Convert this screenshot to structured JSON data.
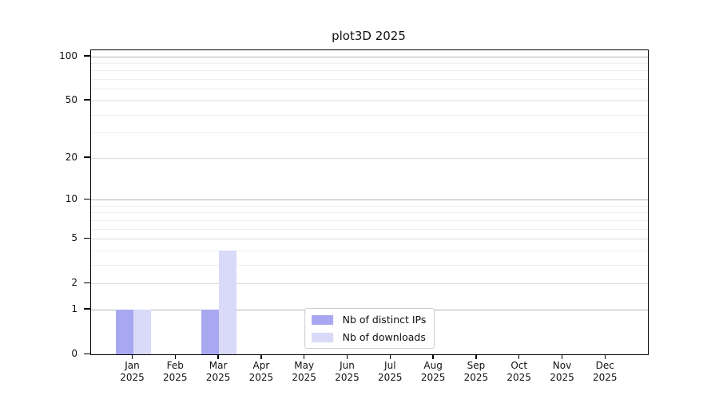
{
  "chart_data": {
    "type": "bar",
    "title": "plot3D 2025",
    "categories": [
      "Jan 2025",
      "Feb 2025",
      "Mar 2025",
      "Apr 2025",
      "May 2025",
      "Jun 2025",
      "Jul 2025",
      "Aug 2025",
      "Sep 2025",
      "Oct 2025",
      "Nov 2025",
      "Dec 2025"
    ],
    "series": [
      {
        "name": "Nb of distinct IPs",
        "color": "#a8a8f0",
        "values": [
          1,
          0,
          1,
          0,
          0,
          0,
          0,
          0,
          0,
          0,
          0,
          0
        ]
      },
      {
        "name": "Nb of downloads",
        "color": "#d9d9f8",
        "values": [
          1,
          0,
          4,
          0,
          0,
          0,
          0,
          0,
          0,
          0,
          0,
          0
        ]
      }
    ],
    "y_axis": {
      "scale": "log1p",
      "ticks": [
        0,
        1,
        2,
        5,
        10,
        20,
        50,
        100
      ],
      "minor_ticks": [
        3,
        4,
        6,
        7,
        8,
        9,
        30,
        40,
        60,
        70,
        80,
        90
      ],
      "max": 110
    },
    "xlabel": "",
    "ylabel": "",
    "grid": true,
    "legend_position": "lower center"
  },
  "colors": {
    "background": "#ffffff",
    "axis": "#000000",
    "grid_major_pow10": "#b5b5b5",
    "grid_major": "#dcdcdc",
    "grid_minor": "#efefef",
    "bar_distinct_ips": "#a8a8f0",
    "bar_downloads": "#d9d9f8"
  }
}
